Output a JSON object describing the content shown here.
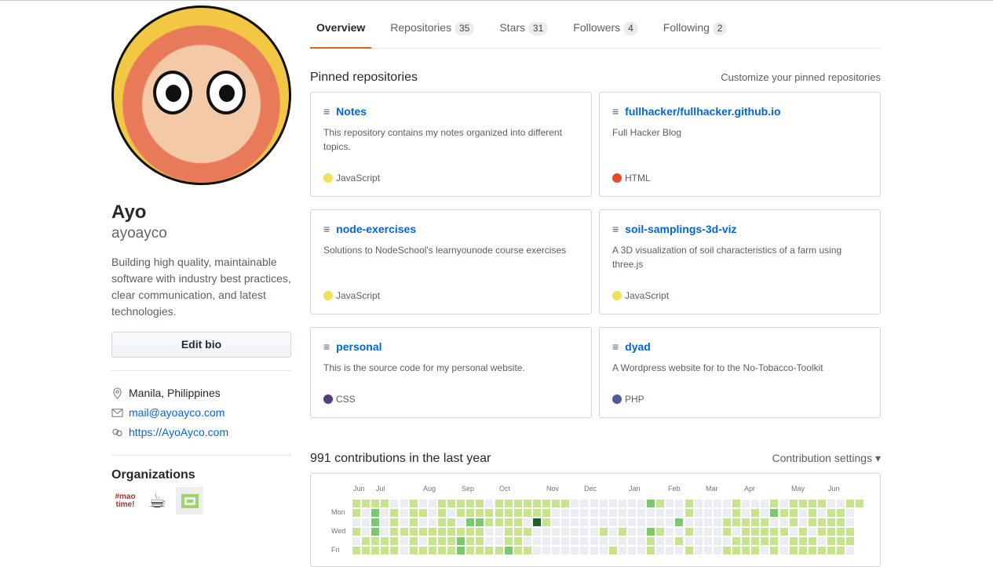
{
  "profile": {
    "name": "Ayo",
    "login": "ayoayco",
    "bio": "Building high quality, maintainable software with industry best practices, clear communication, and latest technologies.",
    "edit_bio": "Edit bio",
    "location": "Manila, Philippines",
    "email": "mail@ayoayco.com",
    "website": "https://AyoAyco.com",
    "organizations_title": "Organizations",
    "organizations": [
      "#mao time!",
      "coffee",
      "green"
    ]
  },
  "tabs": [
    {
      "label": "Overview"
    },
    {
      "label": "Repositories",
      "count": "35"
    },
    {
      "label": "Stars",
      "count": "31"
    },
    {
      "label": "Followers",
      "count": "4"
    },
    {
      "label": "Following",
      "count": "2"
    }
  ],
  "pinned": {
    "title": "Pinned repositories",
    "customize": "Customize your pinned repositories",
    "repos": [
      {
        "name": "Notes",
        "desc": "This repository contains my notes organized into different topics.",
        "lang": "JavaScript",
        "color": "#f1e05a"
      },
      {
        "name": "fullhacker/fullhacker.github.io",
        "desc": "Full Hacker Blog",
        "lang": "HTML",
        "color": "#e34c26"
      },
      {
        "name": "node-exercises",
        "desc": "Solutions to NodeSchool's learnyounode course exercises",
        "lang": "JavaScript",
        "color": "#f1e05a"
      },
      {
        "name": "soil-samplings-3d-viz",
        "desc": "A 3D visualization of soil characteristics of a farm using three.js",
        "lang": "JavaScript",
        "color": "#f1e05a"
      },
      {
        "name": "personal",
        "desc": "This is the source code for my personal website.",
        "lang": "CSS",
        "color": "#563d7c"
      },
      {
        "name": "dyad",
        "desc": "A Wordpress website for to the No-Tobacco-Toolkit",
        "lang": "PHP",
        "color": "#4F5D95"
      }
    ]
  },
  "contributions": {
    "title": "991 contributions in the last year",
    "settings": "Contribution settings ▾",
    "months": [
      "Jun",
      "Jul",
      "Aug",
      "Sep",
      "Oct",
      "Nov",
      "Dec",
      "Jan",
      "Feb",
      "Mar",
      "Apr",
      "May",
      "Jun"
    ],
    "days": [
      "Mon",
      "Wed",
      "Fri"
    ],
    "colors": [
      "#ebedf0",
      "#c6e48b",
      "#7bc96f",
      "#239a3b",
      "#196127"
    ],
    "levels": [
      "11110010011111011111111000000002100100001000101111001111111",
      "10201011010111111111100000000000000100001010211010110101001",
      "00201010011022111104100000000000002000011111001011110001100",
      "10201111111111001110000000101002100100010111110101111010100",
      "01111010111211001100000000000001001000001111101110111010100",
      "11111011111211112110000000010001000100011110101111110111000"
    ]
  }
}
